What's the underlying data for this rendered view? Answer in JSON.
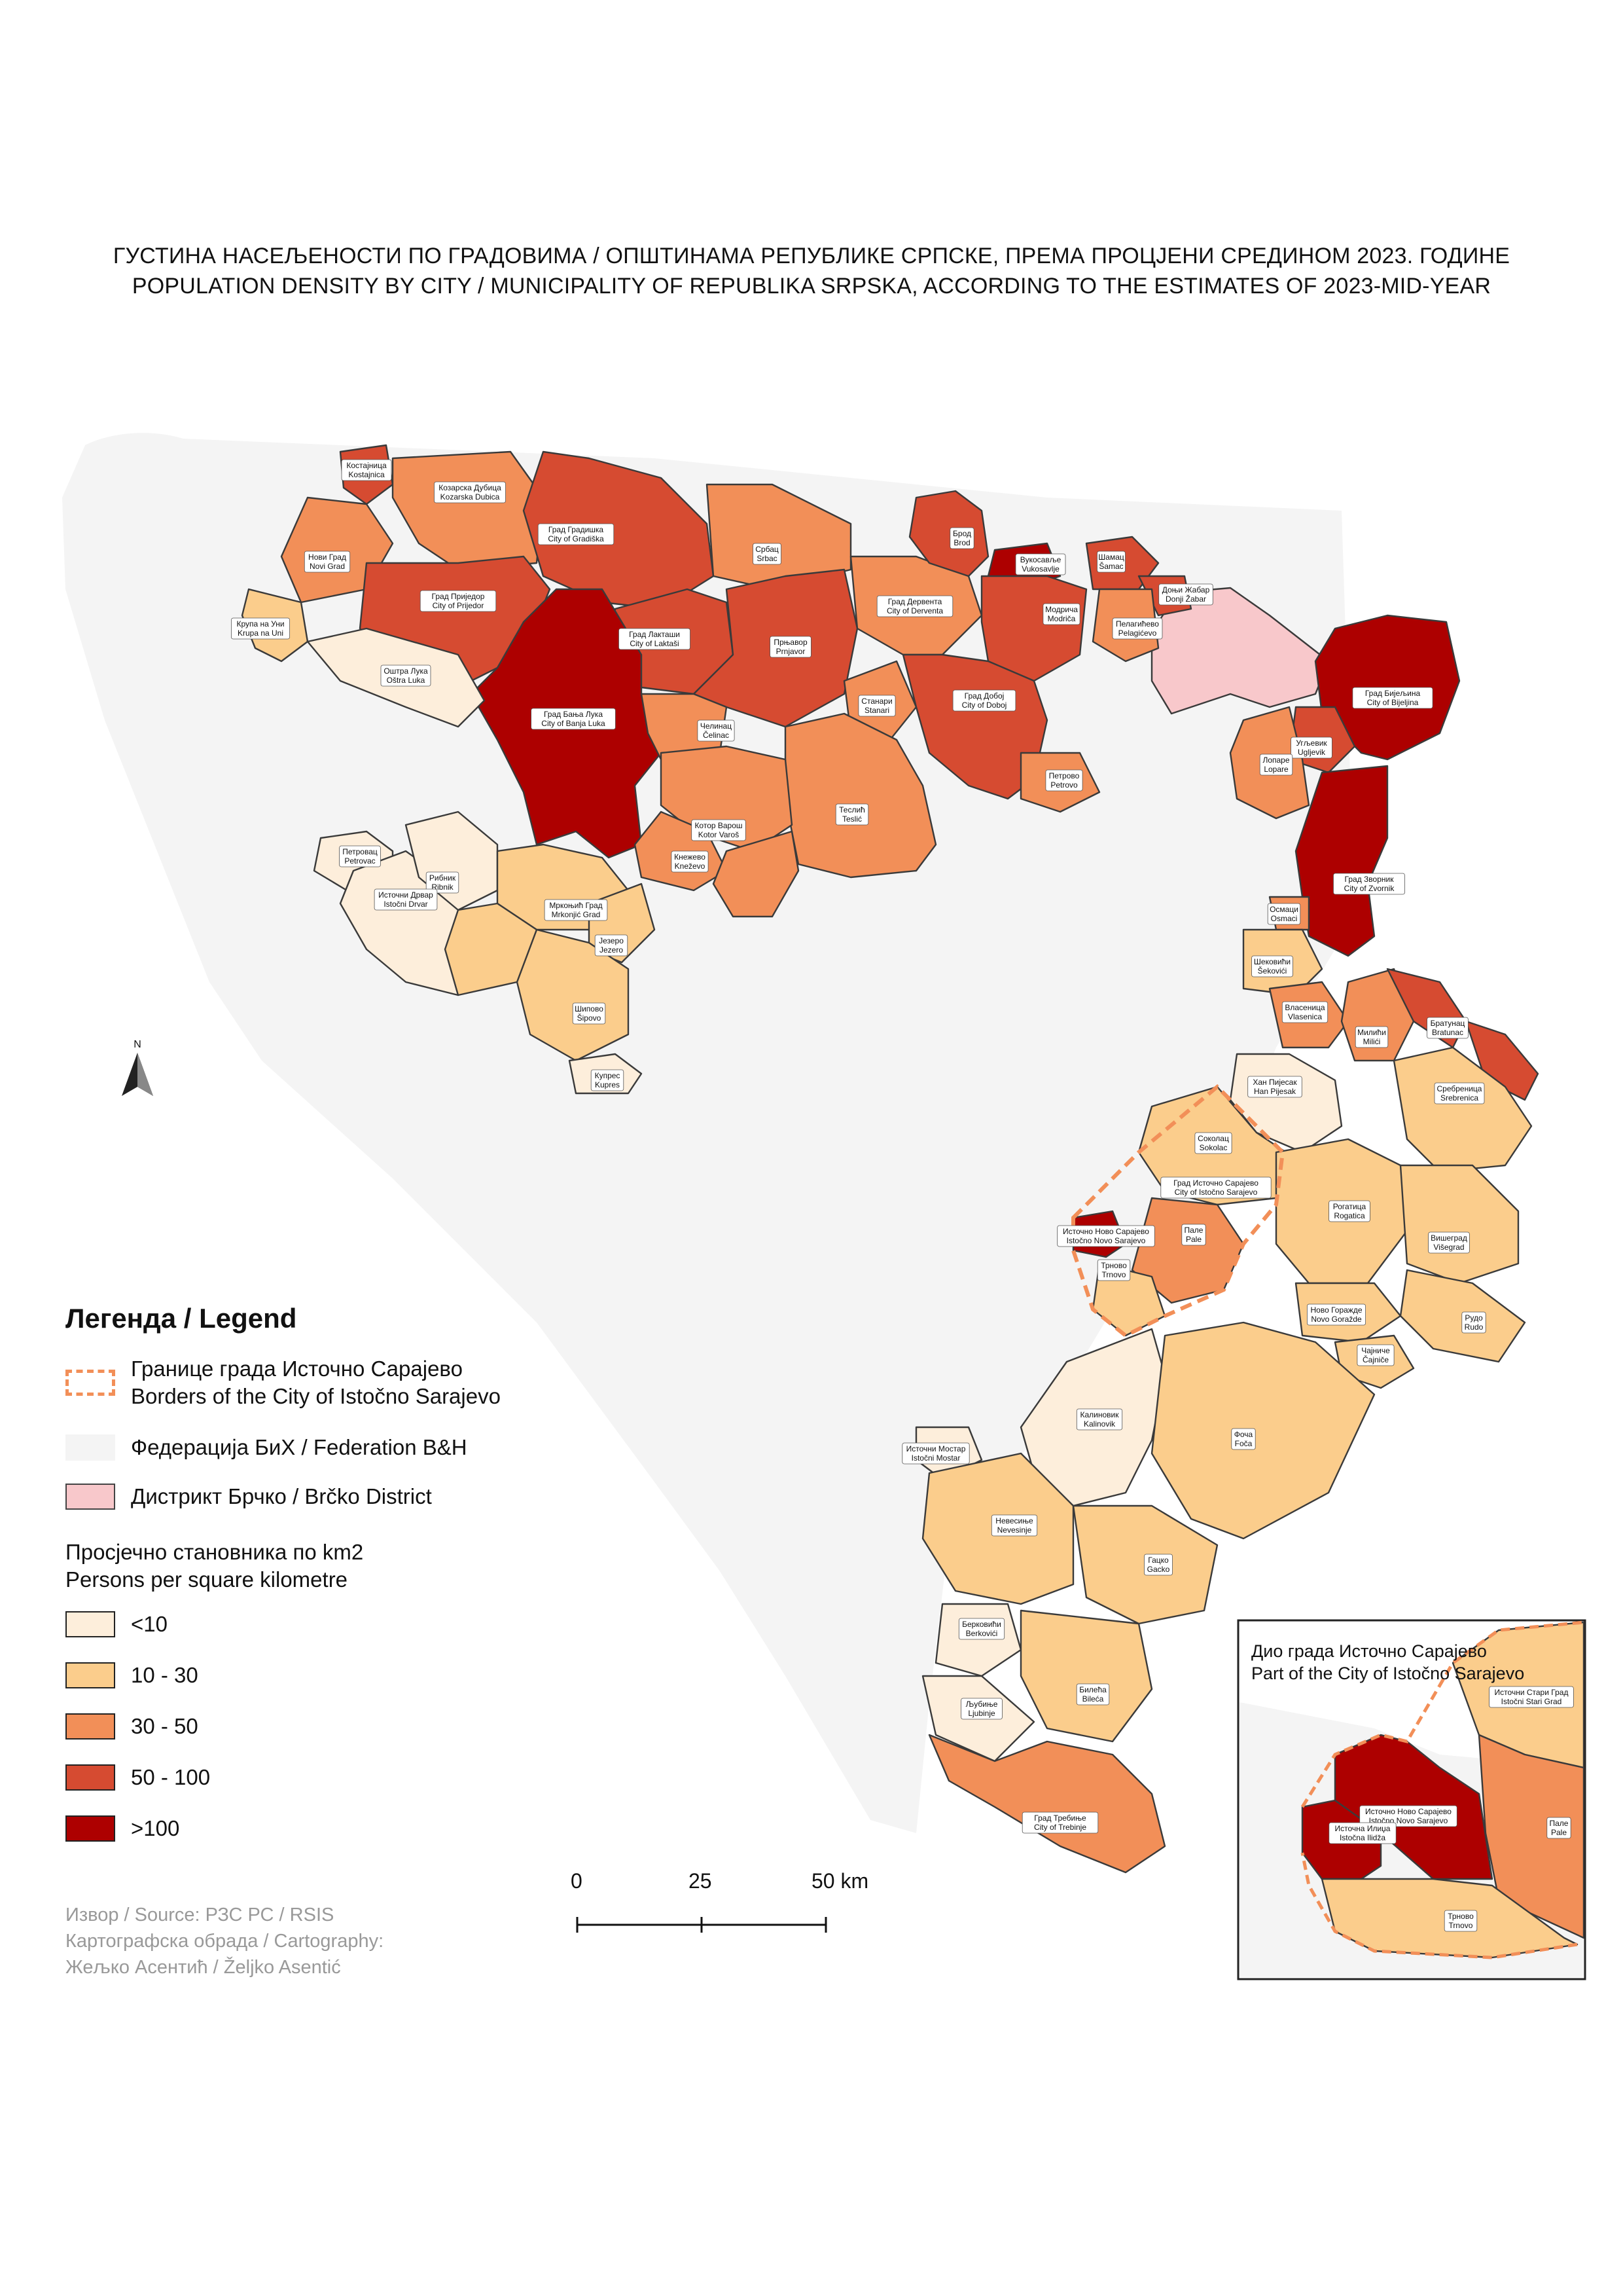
{
  "title": {
    "line1": "ГУСТИНА НАСЕЉЕНОСТИ ПО ГРАДОВИМА / ОПШТИНАМА РЕПУБЛИКЕ СРПСКЕ, ПРЕМА ПРОЦЈЕНИ СРЕДИНОМ 2023. ГОДИНЕ",
    "line2": "POPULATION DENSITY BY CITY / MUNICIPALITY OF REPUBLIKA SRPSKA, ACCORDING TO THE ESTIMATES OF 2023-MID-YEAR"
  },
  "north_arrow_label": "N",
  "legend": {
    "title": "Легенда / Legend",
    "border": {
      "line1": "Границе града Источно Сарајево",
      "line2": "Borders of the City of Istočno Sarajevo"
    },
    "federation": "Федерација БиХ / Federation B&H",
    "brcko": "Дистрикт Брчко / Brčko District",
    "density_title_1": "Просјечно становника по km2",
    "density_title_2": "Persons per square kilometre",
    "classes": [
      {
        "label": "<10",
        "color": "#fdeedb"
      },
      {
        "label": "10 - 30",
        "color": "#fbcd8c"
      },
      {
        "label": "30 - 50",
        "color": "#f28f58"
      },
      {
        "label": "50 - 100",
        "color": "#d64b31"
      },
      {
        "label": ">100",
        "color": "#ad0000"
      }
    ],
    "federation_color": "#f4f4f4",
    "brcko_color": "#f8c8cb",
    "border_color": "#f28f58"
  },
  "source": {
    "line1": "Извор / Source: РЗС РС / RSIS",
    "line2": "Картографска обрада / Cartography:",
    "line3": "Жељко Асентић / Željko Asentić"
  },
  "scale": {
    "ticks": [
      "0",
      "25",
      "50 km"
    ]
  },
  "inset": {
    "title1": "Дио града Источно Сарајево",
    "title2": "Part of the City of Istočno Sarajevo",
    "labels": [
      {
        "cy": "Источни Стари Град",
        "lat": "Istočni Stari Grad"
      },
      {
        "cy": "Источно Ново Сарајево",
        "lat": "Istočno Novo Sarajevo"
      },
      {
        "cy": "Источна Илиџа",
        "lat": "Istočna Ilidža"
      },
      {
        "cy": "Пале",
        "lat": "Pale"
      },
      {
        "cy": "Трново",
        "lat": "Trnovo"
      }
    ]
  },
  "municipalities": [
    {
      "cy": "Костајница",
      "lat": "Kostajnica"
    },
    {
      "cy": "Козарска Дубица",
      "lat": "Kozarska Dubica"
    },
    {
      "cy": "Нови Град",
      "lat": "Novi Grad"
    },
    {
      "cy": "Крупа на Уни",
      "lat": "Krupa na Uni"
    },
    {
      "cy": "Град Приједор",
      "lat": "City of Prijedor"
    },
    {
      "cy": "Град Градишка",
      "lat": "City of Gradiška"
    },
    {
      "cy": "Србац",
      "lat": "Srbac"
    },
    {
      "cy": "Брод",
      "lat": "Brod"
    },
    {
      "cy": "Вукосавље",
      "lat": "Vukosavlje"
    },
    {
      "cy": "Шамац",
      "lat": "Šamac"
    },
    {
      "cy": "Доњи Жабар",
      "lat": "Donji Žabar"
    },
    {
      "cy": "Пелагићево",
      "lat": "Pelagićevo"
    },
    {
      "cy": "Модрича",
      "lat": "Modriča"
    },
    {
      "cy": "Град Дервента",
      "lat": "City of Derventa"
    },
    {
      "cy": "Град Лакташи",
      "lat": "City of Laktaši"
    },
    {
      "cy": "Прњавор",
      "lat": "Prnjavor"
    },
    {
      "cy": "Оштра Лука",
      "lat": "Oštra Luka"
    },
    {
      "cy": "Град Бања Лука",
      "lat": "City of Banja Luka"
    },
    {
      "cy": "Челинац",
      "lat": "Čelinac"
    },
    {
      "cy": "Станари",
      "lat": "Stanari"
    },
    {
      "cy": "Град Добој",
      "lat": "City of Doboj"
    },
    {
      "cy": "Град Бијељина",
      "lat": "City of Bijeljina"
    },
    {
      "cy": "Угљевик",
      "lat": "Ugljevik"
    },
    {
      "cy": "Лопаре",
      "lat": "Lopare"
    },
    {
      "cy": "Петрово",
      "lat": "Petrovo"
    },
    {
      "cy": "Теслић",
      "lat": "Teslić"
    },
    {
      "cy": "Котор Варош",
      "lat": "Kotor Varoš"
    },
    {
      "cy": "Кнежево",
      "lat": "Kneževo"
    },
    {
      "cy": "Петровац",
      "lat": "Petrovac"
    },
    {
      "cy": "Рибник",
      "lat": "Ribnik"
    },
    {
      "cy": "Источни Дрвар",
      "lat": "Istočni Drvar"
    },
    {
      "cy": "Мркоњић Град",
      "lat": "Mrkonjić Grad"
    },
    {
      "cy": "Језеро",
      "lat": "Jezero"
    },
    {
      "cy": "Шипово",
      "lat": "Šipovo"
    },
    {
      "cy": "Купрес",
      "lat": "Kupres"
    },
    {
      "cy": "Град Зворник",
      "lat": "City of Zvornik"
    },
    {
      "cy": "Осмаци",
      "lat": "Osmaci"
    },
    {
      "cy": "Шековићи",
      "lat": "Šekovići"
    },
    {
      "cy": "Власеница",
      "lat": "Vlasenica"
    },
    {
      "cy": "Милићи",
      "lat": "Milići"
    },
    {
      "cy": "Братунац",
      "lat": "Bratunac"
    },
    {
      "cy": "Хан Пијесак",
      "lat": "Han Pijesak"
    },
    {
      "cy": "Сребреница",
      "lat": "Srebrenica"
    },
    {
      "cy": "Соколац",
      "lat": "Sokolac"
    },
    {
      "cy": "Град Источно Сарајево",
      "lat": "City of Istočno Sarajevo"
    },
    {
      "cy": "Рогатица",
      "lat": "Rogatica"
    },
    {
      "cy": "Источно Ново Сарајево",
      "lat": "Istočno Novo Sarajevo"
    },
    {
      "cy": "Пале",
      "lat": "Pale"
    },
    {
      "cy": "Вишеград",
      "lat": "Višegrad"
    },
    {
      "cy": "Трново",
      "lat": "Trnovo"
    },
    {
      "cy": "Ново Горажде",
      "lat": "Novo Goražde"
    },
    {
      "cy": "Рудо",
      "lat": "Rudo"
    },
    {
      "cy": "Чајниче",
      "lat": "Čajniče"
    },
    {
      "cy": "Калиновик",
      "lat": "Kalinovik"
    },
    {
      "cy": "Источни Мостар",
      "lat": "Istočni Mostar"
    },
    {
      "cy": "Фоча",
      "lat": "Foča"
    },
    {
      "cy": "Невесиње",
      "lat": "Nevesinje"
    },
    {
      "cy": "Гацко",
      "lat": "Gacko"
    },
    {
      "cy": "Берковићи",
      "lat": "Berkovići"
    },
    {
      "cy": "Билећа",
      "lat": "Bileća"
    },
    {
      "cy": "Љубиње",
      "lat": "Ljubinje"
    },
    {
      "cy": "Град Требиње",
      "lat": "City of Trebinje"
    }
  ]
}
